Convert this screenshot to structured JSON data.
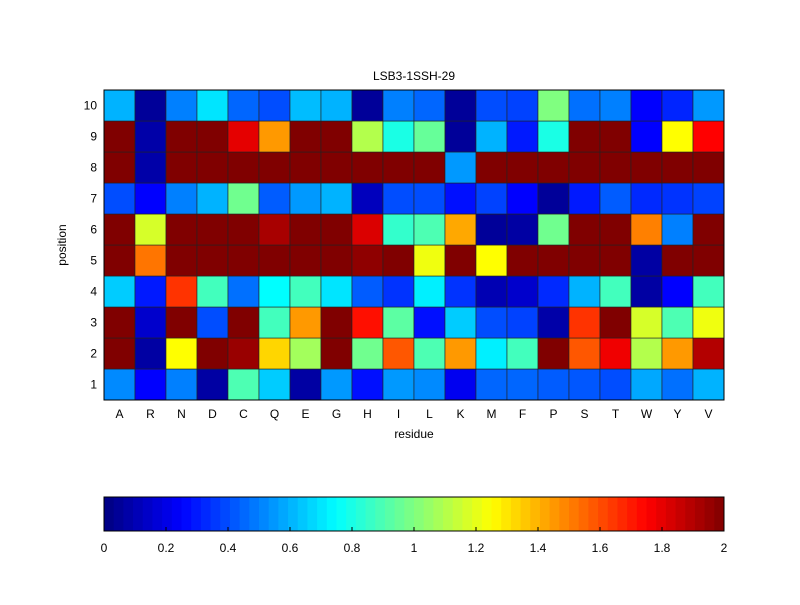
{
  "chart_data": {
    "type": "heatmap",
    "title": "LSB3-1SSH-29",
    "xlabel": "residue",
    "ylabel": "position",
    "x_categories": [
      "A",
      "R",
      "N",
      "D",
      "C",
      "Q",
      "E",
      "G",
      "H",
      "I",
      "L",
      "K",
      "M",
      "F",
      "P",
      "S",
      "T",
      "W",
      "Y",
      "V"
    ],
    "y_categories": [
      "1",
      "2",
      "3",
      "4",
      "5",
      "6",
      "7",
      "8",
      "9",
      "10"
    ],
    "colormap": "jet",
    "clim": [
      0,
      2
    ],
    "colorbar": {
      "placement": "bottom",
      "ticks": [
        "0",
        "0.2",
        "0.4",
        "0.6",
        "0.8",
        "1",
        "1.2",
        "1.4",
        "1.6",
        "1.8",
        "2"
      ]
    },
    "values": [
      [
        0.52,
        0.25,
        0.5,
        0.07,
        0.9,
        0.65,
        0.07,
        0.55,
        0.28,
        0.55,
        0.52,
        0.22,
        0.45,
        0.45,
        0.43,
        0.42,
        0.4,
        0.58,
        0.47,
        0.6
      ],
      [
        2.0,
        0.07,
        1.25,
        2.0,
        1.95,
        1.33,
        1.07,
        2.0,
        0.97,
        1.58,
        0.9,
        1.45,
        0.72,
        0.88,
        2.0,
        1.58,
        1.78,
        1.1,
        1.45,
        1.9
      ],
      [
        2.0,
        0.15,
        2.0,
        0.4,
        2.0,
        0.88,
        1.45,
        2.0,
        1.72,
        0.93,
        0.28,
        0.65,
        0.4,
        0.38,
        0.08,
        1.65,
        2.0,
        1.17,
        0.9,
        1.22
      ],
      [
        0.65,
        0.3,
        1.65,
        0.88,
        0.47,
        0.75,
        0.88,
        0.7,
        0.43,
        0.35,
        0.72,
        0.35,
        0.1,
        0.15,
        0.33,
        0.6,
        0.88,
        0.07,
        0.25,
        0.88
      ],
      [
        2.0,
        1.52,
        2.0,
        2.0,
        2.0,
        2.0,
        2.0,
        2.0,
        1.97,
        2.0,
        1.22,
        2.0,
        1.25,
        2.0,
        2.0,
        2.0,
        2.0,
        0.07,
        2.0,
        2.0
      ],
      [
        2.0,
        1.17,
        2.0,
        2.0,
        2.0,
        1.92,
        2.0,
        2.0,
        1.82,
        0.85,
        0.9,
        1.42,
        0.05,
        0.07,
        0.97,
        2.0,
        2.0,
        1.5,
        0.5,
        2.0
      ],
      [
        0.4,
        0.25,
        0.5,
        0.6,
        0.97,
        0.43,
        0.55,
        0.6,
        0.12,
        0.4,
        0.4,
        0.28,
        0.38,
        0.25,
        0.05,
        0.3,
        0.43,
        0.33,
        0.35,
        0.38
      ],
      [
        2.0,
        0.08,
        2.0,
        2.0,
        2.0,
        2.0,
        2.0,
        2.0,
        2.0,
        2.0,
        2.0,
        0.55,
        2.0,
        2.0,
        2.0,
        2.0,
        2.0,
        2.0,
        2.0,
        2.0
      ],
      [
        2.0,
        0.08,
        2.0,
        2.0,
        1.8,
        1.45,
        2.0,
        2.0,
        1.1,
        0.8,
        0.95,
        0.05,
        0.6,
        0.3,
        0.8,
        2.0,
        2.0,
        0.25,
        1.25,
        1.75
      ],
      [
        0.6,
        0.05,
        0.5,
        0.7,
        0.45,
        0.4,
        0.62,
        0.6,
        0.05,
        0.5,
        0.45,
        0.05,
        0.4,
        0.38,
        1.0,
        0.47,
        0.5,
        0.25,
        0.32,
        0.55
      ]
    ]
  }
}
